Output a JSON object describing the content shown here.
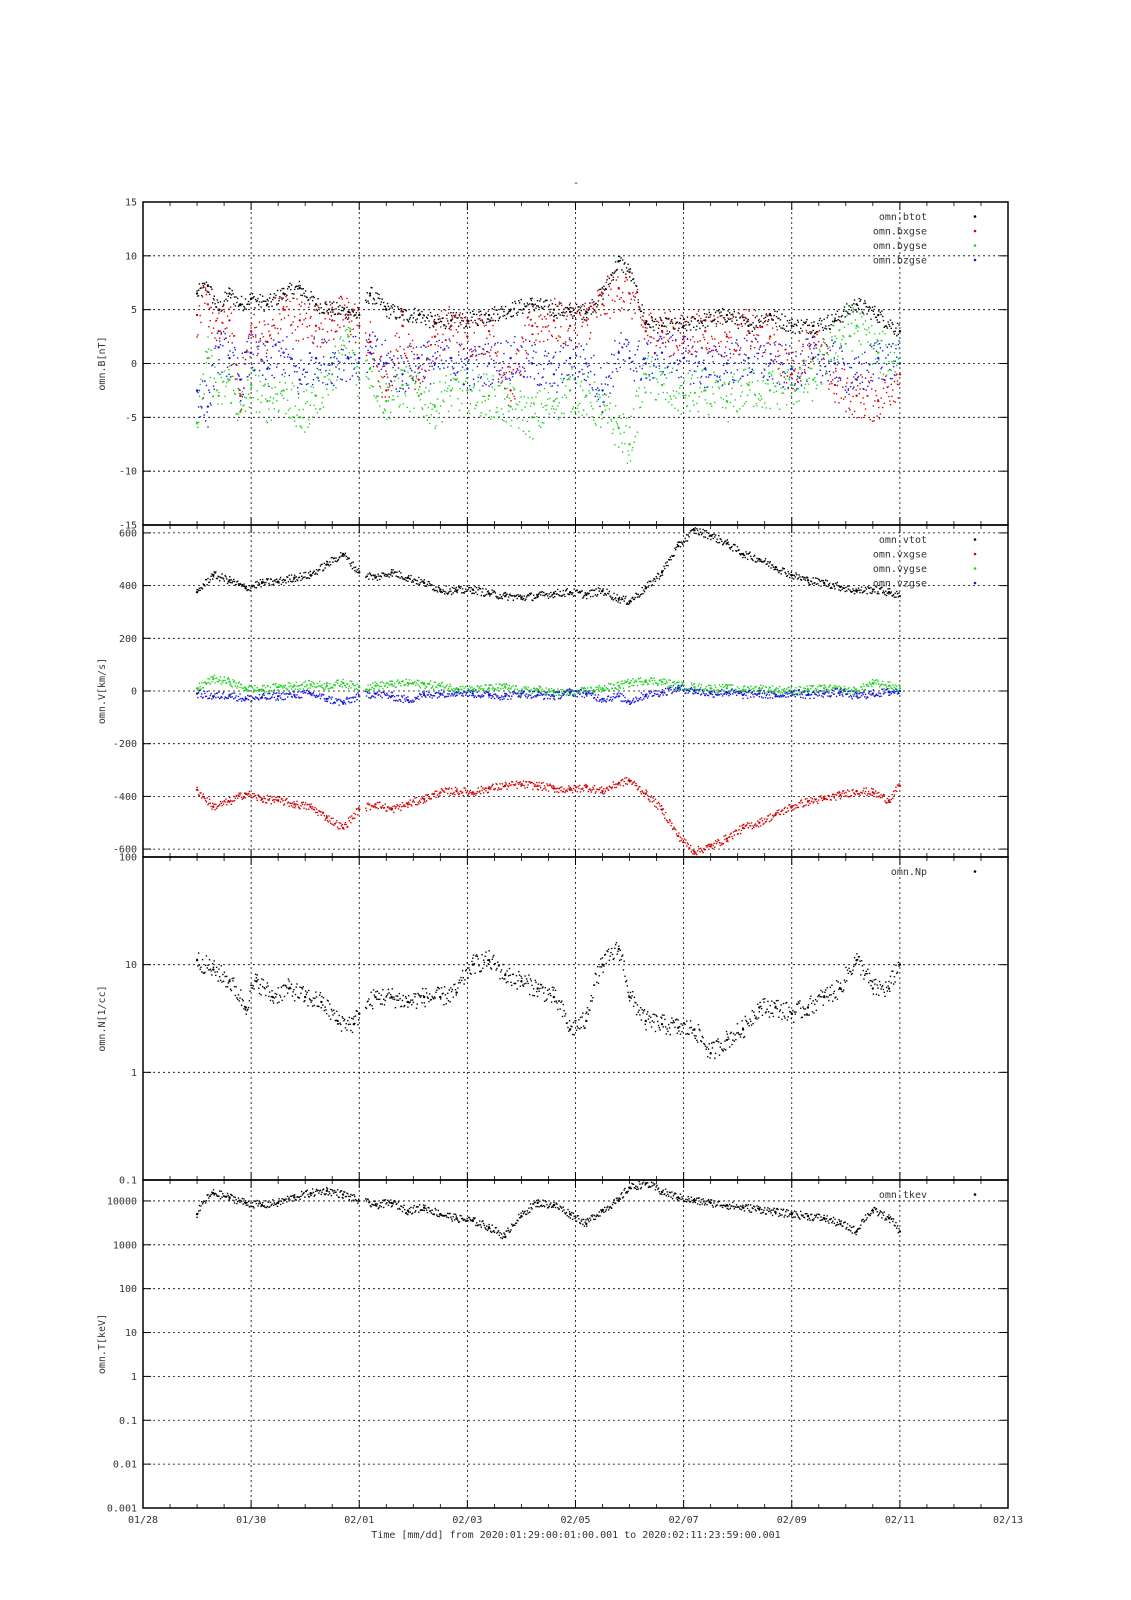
{
  "title": "-",
  "x_tick_labels": [
    "01/28",
    "01/30",
    "02/01",
    "02/03",
    "02/05",
    "02/07",
    "02/09",
    "02/11",
    "02/13"
  ],
  "xlabel": "Time [mm/dd]  from 2020:01:29:00:01:00.001  to  2020:02:11:23:59:00.001",
  "chart_data": [
    {
      "type": "scatter",
      "panel": "B",
      "ylabel": "omn.B[nT]",
      "ylim": [
        -15,
        15
      ],
      "y_scale": "linear",
      "yticks": [
        -15,
        -10,
        -5,
        0,
        5,
        10,
        15
      ],
      "x_range": [
        "01/28",
        "02/13"
      ],
      "x_unit": "day-of-2020 (Jan 28 = 28)",
      "legend_position": "top-right",
      "series": [
        {
          "name": "omn.btot",
          "color": "#000000",
          "x": [
            29.0,
            29.2,
            29.4,
            29.6,
            29.8,
            30.0,
            30.3,
            30.6,
            30.9,
            31.2,
            31.5,
            31.8,
            32.0,
            32.2,
            32.5,
            32.8,
            33.1,
            33.4,
            33.7,
            34.0,
            34.4,
            34.8,
            35.2,
            35.6,
            35.9,
            36.2,
            36.5,
            36.8,
            37.0,
            37.3,
            37.6,
            38.0,
            38.4,
            38.8,
            39.2,
            39.6,
            40.0,
            40.4,
            40.8,
            41.2,
            41.6,
            42.0
          ],
          "y": [
            6.5,
            7.2,
            5.0,
            6.5,
            5.5,
            6.0,
            5.5,
            6.5,
            7.0,
            5.5,
            5.0,
            4.8,
            4.5,
            6.5,
            5.0,
            4.5,
            4.5,
            3.8,
            4.0,
            4.0,
            4.5,
            5.0,
            5.5,
            5.0,
            4.8,
            4.8,
            6.5,
            9.5,
            8.5,
            3.8,
            3.5,
            3.5,
            4.0,
            4.5,
            3.5,
            4.5,
            3.5,
            3.5,
            4.0,
            5.5,
            4.5,
            3.0
          ]
        },
        {
          "name": "omn.bxgse",
          "color": "#d40000",
          "x": [
            29.0,
            29.2,
            29.4,
            29.6,
            29.8,
            30.0,
            30.3,
            30.6,
            30.9,
            31.2,
            31.5,
            31.8,
            32.0,
            32.2,
            32.5,
            32.8,
            33.1,
            33.4,
            33.7,
            34.0,
            34.4,
            34.8,
            35.2,
            35.6,
            35.9,
            36.2,
            36.5,
            36.8,
            37.0,
            37.3,
            37.6,
            38.0,
            38.4,
            38.8,
            39.2,
            39.6,
            40.0,
            40.4,
            40.8,
            41.2,
            41.6,
            42.0
          ],
          "y": [
            4.5,
            5.5,
            3.0,
            4.0,
            -3.0,
            3.0,
            2.0,
            5.0,
            4.0,
            3.5,
            4.0,
            4.5,
            3.5,
            2.0,
            -2.5,
            3.5,
            -1.5,
            2.5,
            3.5,
            2.5,
            3.0,
            -2.5,
            3.5,
            4.0,
            3.5,
            4.0,
            5.5,
            7.0,
            6.5,
            3.0,
            3.0,
            2.5,
            3.0,
            2.5,
            3.0,
            2.5,
            -1.0,
            2.5,
            -2.0,
            -3.0,
            -3.5,
            -1.0
          ]
        },
        {
          "name": "omn.bygse",
          "color": "#1fd11f",
          "x": [
            29.0,
            29.2,
            29.4,
            29.6,
            29.8,
            30.0,
            30.3,
            30.6,
            30.9,
            31.2,
            31.5,
            31.8,
            32.0,
            32.2,
            32.5,
            32.8,
            33.1,
            33.4,
            33.7,
            34.0,
            34.4,
            34.8,
            35.2,
            35.6,
            35.9,
            36.2,
            36.5,
            36.8,
            37.0,
            37.3,
            37.6,
            38.0,
            38.4,
            38.8,
            39.2,
            39.6,
            40.0,
            40.4,
            40.8,
            41.2,
            41.6,
            42.0
          ],
          "y": [
            -5.5,
            0.5,
            -3.0,
            -1.5,
            -4.5,
            -2.0,
            -3.5,
            -2.5,
            -5.0,
            -3.0,
            -1.0,
            2.5,
            -1.5,
            -0.5,
            -3.5,
            -2.0,
            -3.0,
            -4.0,
            -2.5,
            -2.5,
            -3.0,
            -4.0,
            -5.0,
            -3.5,
            -2.5,
            -3.0,
            -4.5,
            -6.0,
            -7.5,
            -1.0,
            -2.0,
            -3.0,
            -2.5,
            -3.5,
            -2.0,
            -2.5,
            -2.0,
            -1.5,
            2.0,
            3.5,
            1.0,
            0.5
          ]
        },
        {
          "name": "omn.bzgse",
          "color": "#1616d8",
          "x": [
            29.0,
            29.2,
            29.4,
            29.6,
            29.8,
            30.0,
            30.3,
            30.6,
            30.9,
            31.2,
            31.5,
            31.8,
            32.0,
            32.2,
            32.5,
            32.8,
            33.1,
            33.4,
            33.7,
            34.0,
            34.4,
            34.8,
            35.2,
            35.6,
            35.9,
            36.2,
            36.5,
            36.8,
            37.0,
            37.3,
            37.6,
            38.0,
            38.4,
            38.8,
            39.2,
            39.6,
            40.0,
            40.4,
            40.8,
            41.2,
            41.6,
            42.0
          ],
          "y": [
            -2.5,
            -4.0,
            1.5,
            0.5,
            -1.5,
            1.0,
            -0.5,
            1.0,
            -1.5,
            0.5,
            0.0,
            0.5,
            0.5,
            1.0,
            0.0,
            -1.0,
            0.5,
            0.0,
            0.5,
            -0.5,
            0.0,
            0.5,
            0.0,
            -1.0,
            0.5,
            0.0,
            -2.5,
            1.0,
            0.5,
            0.0,
            1.0,
            0.5,
            -0.5,
            0.0,
            0.5,
            0.0,
            -0.5,
            0.5,
            0.0,
            -1.5,
            0.5,
            0.0
          ]
        }
      ]
    },
    {
      "type": "scatter",
      "panel": "V",
      "ylabel": "omn.V[km/s]",
      "ylim": [
        -630,
        630
      ],
      "y_scale": "linear",
      "yticks": [
        -600,
        -400,
        -200,
        0,
        200,
        400,
        600
      ],
      "legend_position": "top-right",
      "series": [
        {
          "name": "omn.vtot",
          "color": "#000000",
          "x": [
            29.0,
            29.3,
            29.6,
            29.9,
            30.2,
            30.5,
            30.8,
            31.1,
            31.4,
            31.7,
            32.0,
            32.3,
            32.6,
            32.9,
            33.2,
            33.5,
            33.8,
            34.1,
            34.4,
            34.7,
            35.0,
            35.3,
            35.6,
            35.9,
            36.2,
            36.5,
            36.8,
            37.0,
            37.3,
            37.6,
            37.9,
            38.2,
            38.5,
            38.8,
            39.1,
            39.4,
            39.7,
            40.0,
            40.3,
            40.6,
            40.9,
            41.2,
            41.5,
            41.8,
            42.0
          ],
          "y": [
            375,
            440,
            420,
            390,
            410,
            415,
            430,
            440,
            480,
            520,
            450,
            430,
            450,
            430,
            410,
            385,
            380,
            385,
            370,
            360,
            355,
            360,
            370,
            375,
            365,
            380,
            350,
            340,
            390,
            450,
            550,
            610,
            590,
            560,
            520,
            500,
            470,
            440,
            420,
            410,
            395,
            380,
            385,
            375,
            360
          ]
        },
        {
          "name": "omn.vxgse",
          "color": "#d40000",
          "x": [
            29.0,
            29.3,
            29.6,
            29.9,
            30.2,
            30.5,
            30.8,
            31.1,
            31.4,
            31.7,
            32.0,
            32.3,
            32.6,
            32.9,
            33.2,
            33.5,
            33.8,
            34.1,
            34.4,
            34.7,
            35.0,
            35.3,
            35.6,
            35.9,
            36.2,
            36.5,
            36.8,
            37.0,
            37.3,
            37.6,
            37.9,
            38.2,
            38.5,
            38.8,
            39.1,
            39.4,
            39.7,
            40.0,
            40.3,
            40.6,
            40.9,
            41.2,
            41.5,
            41.8,
            42.0
          ],
          "y": [
            -375,
            -440,
            -420,
            -390,
            -410,
            -415,
            -430,
            -440,
            -480,
            -520,
            -450,
            -430,
            -450,
            -430,
            -410,
            -385,
            -380,
            -385,
            -370,
            -360,
            -355,
            -360,
            -370,
            -375,
            -365,
            -380,
            -350,
            -340,
            -390,
            -450,
            -550,
            -610,
            -590,
            -560,
            -520,
            -500,
            -470,
            -440,
            -420,
            -410,
            -395,
            -380,
            -385,
            -415,
            -360
          ]
        },
        {
          "name": "omn.vygse",
          "color": "#1fd11f",
          "x": [
            29.0,
            29.3,
            29.6,
            29.9,
            30.2,
            30.5,
            30.8,
            31.1,
            31.4,
            31.7,
            32.0,
            32.3,
            32.6,
            32.9,
            33.2,
            33.5,
            33.8,
            34.1,
            34.4,
            34.7,
            35.0,
            35.3,
            35.6,
            35.9,
            36.2,
            36.5,
            36.8,
            37.0,
            37.3,
            37.6,
            37.9,
            38.2,
            38.5,
            38.8,
            39.1,
            39.4,
            39.7,
            40.0,
            40.3,
            40.6,
            40.9,
            41.2,
            41.5,
            41.8,
            42.0
          ],
          "y": [
            10,
            45,
            35,
            10,
            5,
            15,
            20,
            25,
            20,
            30,
            15,
            20,
            25,
            30,
            25,
            20,
            10,
            5,
            10,
            15,
            0,
            5,
            -5,
            -10,
            0,
            10,
            20,
            30,
            40,
            35,
            20,
            15,
            10,
            10,
            5,
            10,
            5,
            0,
            5,
            10,
            5,
            0,
            30,
            20,
            10
          ]
        },
        {
          "name": "omn.vzgse",
          "color": "#1616d8",
          "x": [
            29.0,
            29.3,
            29.6,
            29.9,
            30.2,
            30.5,
            30.8,
            31.1,
            31.4,
            31.7,
            32.0,
            32.3,
            32.6,
            32.9,
            33.2,
            33.5,
            33.8,
            34.1,
            34.4,
            34.7,
            35.0,
            35.3,
            35.6,
            35.9,
            36.2,
            36.5,
            36.8,
            37.0,
            37.3,
            37.6,
            37.9,
            38.2,
            38.5,
            38.8,
            39.1,
            39.4,
            39.7,
            40.0,
            40.3,
            40.6,
            40.9,
            41.2,
            41.5,
            41.8,
            42.0
          ],
          "y": [
            -10,
            -20,
            -15,
            -30,
            -25,
            -20,
            -15,
            -10,
            -30,
            -45,
            -20,
            -10,
            -20,
            -35,
            -15,
            -10,
            -5,
            -10,
            -15,
            -20,
            -10,
            -15,
            -20,
            -5,
            -10,
            -30,
            -20,
            -40,
            -15,
            -5,
            10,
            0,
            -10,
            -5,
            -15,
            -10,
            -20,
            -5,
            -15,
            -10,
            -5,
            -20,
            -10,
            -5,
            0
          ]
        }
      ]
    },
    {
      "type": "scatter",
      "panel": "N",
      "ylabel": "omn.N[1/cc]",
      "ylim": [
        0.1,
        100
      ],
      "y_scale": "log",
      "yticks": [
        0.1,
        1,
        10,
        100
      ],
      "legend_position": "top-right",
      "series": [
        {
          "name": "omn.Np",
          "color": "#000000",
          "x": [
            29.0,
            29.3,
            29.6,
            29.9,
            30.1,
            30.4,
            30.7,
            31.0,
            31.3,
            31.6,
            31.9,
            32.0,
            32.3,
            32.6,
            32.9,
            33.2,
            33.5,
            33.8,
            34.1,
            34.4,
            34.7,
            35.0,
            35.3,
            35.6,
            35.9,
            36.2,
            36.5,
            36.8,
            37.0,
            37.3,
            37.6,
            37.9,
            38.2,
            38.5,
            38.8,
            39.1,
            39.4,
            39.7,
            40.0,
            40.3,
            40.6,
            40.9,
            41.2,
            41.5,
            41.8,
            42.0
          ],
          "y": [
            11,
            9,
            7,
            4,
            7,
            5,
            6,
            5,
            4.5,
            3,
            2.8,
            3.5,
            5,
            5,
            4.5,
            5,
            5,
            5.5,
            10,
            11,
            8,
            7,
            6,
            5,
            2.5,
            3,
            10,
            14,
            5,
            3,
            2.8,
            2.6,
            2.5,
            1.5,
            2,
            2.5,
            4,
            4,
            3.5,
            4,
            5,
            6,
            11,
            6,
            6,
            10
          ]
        }
      ]
    },
    {
      "type": "scatter",
      "panel": "T",
      "ylabel": "omn.T[keV]",
      "ylim": [
        0.001,
        30000
      ],
      "y_scale": "log",
      "yticks": [
        0.001,
        0.01,
        0.1,
        1,
        10,
        100,
        1000,
        10000
      ],
      "ytick_labels": [
        "0.001",
        "0.01",
        "0.1",
        "1",
        "10",
        "100",
        "1000",
        "10000"
      ],
      "legend_position": "top-right",
      "series": [
        {
          "name": "omn.tkev",
          "color": "#000000",
          "x": [
            29.0,
            29.3,
            29.6,
            29.9,
            30.2,
            30.5,
            30.8,
            31.1,
            31.4,
            31.7,
            32.0,
            32.3,
            32.6,
            32.9,
            33.2,
            33.5,
            33.8,
            34.1,
            34.4,
            34.7,
            35.0,
            35.3,
            35.6,
            35.9,
            36.2,
            36.5,
            36.8,
            37.0,
            37.3,
            37.6,
            37.9,
            38.2,
            38.5,
            38.8,
            39.1,
            39.4,
            39.7,
            40.0,
            40.3,
            40.6,
            40.9,
            41.2,
            41.5,
            41.8,
            42.0
          ],
          "y": [
            5000,
            15000,
            12000,
            9000,
            8000,
            9000,
            12000,
            15000,
            17000,
            14000,
            10000,
            8000,
            9000,
            6000,
            7000,
            5000,
            4000,
            3500,
            2500,
            1500,
            4500,
            9000,
            8000,
            5000,
            3000,
            6000,
            10000,
            20000,
            25000,
            16000,
            12000,
            10000,
            9000,
            8000,
            7000,
            6500,
            5500,
            5000,
            4500,
            4000,
            3000,
            2000,
            6000,
            4000,
            2000
          ]
        }
      ]
    }
  ]
}
